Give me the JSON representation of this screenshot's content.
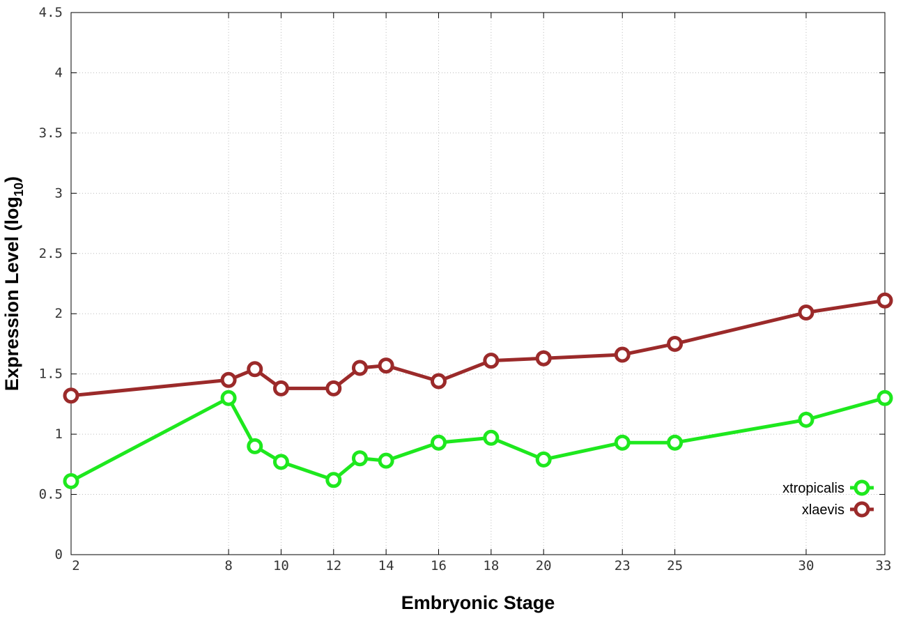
{
  "chart_data": {
    "type": "line",
    "x": [
      2,
      8,
      9,
      10,
      12,
      13,
      14,
      16,
      18,
      20,
      23,
      25,
      30,
      33
    ],
    "x_ticks": [
      2,
      8,
      10,
      12,
      14,
      16,
      18,
      20,
      23,
      25,
      30,
      33
    ],
    "y_ticks": [
      "0",
      "0.5",
      "1",
      "1.5",
      "2",
      "2.5",
      "3",
      "3.5",
      "4",
      "4.5"
    ],
    "xlim": [
      2,
      33
    ],
    "ylim": [
      0,
      4.5
    ],
    "xlabel": "Embryonic Stage",
    "ylabel_main": "Expression Level (log",
    "ylabel_sub": "10",
    "ylabel_close": ")",
    "grid": true,
    "legend_position": "bottom-right",
    "series": [
      {
        "name": "xtropicalis",
        "color": "#1ee81e",
        "values": [
          0.61,
          1.3,
          0.9,
          0.77,
          0.62,
          0.8,
          0.78,
          0.93,
          0.97,
          0.79,
          0.93,
          0.93,
          1.12,
          1.3
        ]
      },
      {
        "name": "xlaevis",
        "color": "#9b2a2a",
        "values": [
          1.32,
          1.45,
          1.54,
          1.38,
          1.38,
          1.55,
          1.57,
          1.44,
          1.61,
          1.63,
          1.66,
          1.75,
          2.01,
          2.11
        ]
      }
    ]
  }
}
